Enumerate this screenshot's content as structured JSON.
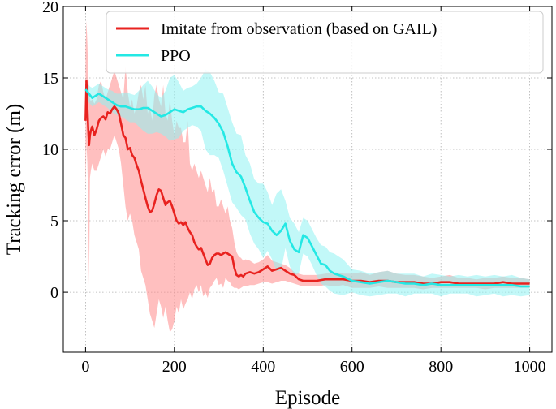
{
  "chart_data": {
    "type": "line",
    "xlabel": "Episode",
    "ylabel": "Tracking error (m)",
    "xlim": [
      -50,
      1050
    ],
    "ylim": [
      -4.2,
      20
    ],
    "xticks": [
      0,
      200,
      400,
      600,
      800,
      1000
    ],
    "yticks": [
      0,
      5,
      10,
      15,
      20
    ],
    "grid": true,
    "legend": "top-right",
    "series": [
      {
        "name": "Imitate from observation (based on GAIL)",
        "color": "#e8221f",
        "band_color": "#ff8a8a",
        "x": [
          0,
          2,
          4,
          6,
          8,
          10,
          12,
          15,
          20,
          25,
          30,
          35,
          40,
          45,
          50,
          55,
          60,
          65,
          70,
          75,
          80,
          85,
          90,
          95,
          100,
          105,
          110,
          115,
          120,
          125,
          130,
          135,
          140,
          145,
          150,
          155,
          160,
          165,
          170,
          175,
          180,
          185,
          190,
          195,
          200,
          205,
          210,
          215,
          220,
          225,
          230,
          235,
          240,
          245,
          250,
          255,
          260,
          265,
          270,
          275,
          280,
          285,
          290,
          295,
          300,
          305,
          310,
          315,
          320,
          325,
          330,
          335,
          340,
          345,
          350,
          355,
          360,
          370,
          380,
          390,
          400,
          410,
          420,
          430,
          440,
          450,
          460,
          470,
          480,
          490,
          500,
          520,
          540,
          560,
          580,
          600,
          620,
          640,
          660,
          680,
          700,
          720,
          740,
          760,
          780,
          800,
          820,
          840,
          860,
          880,
          900,
          920,
          940,
          960,
          980,
          1000
        ],
        "values": [
          12.0,
          14.8,
          13.0,
          11.5,
          10.3,
          11.0,
          11.3,
          11.6,
          11.0,
          11.4,
          12.0,
          12.2,
          12.3,
          12.1,
          12.6,
          12.5,
          12.8,
          13.0,
          12.8,
          12.5,
          11.8,
          11.0,
          10.8,
          10.0,
          10.1,
          9.6,
          9.4,
          8.9,
          8.5,
          7.8,
          7.2,
          6.6,
          6.0,
          5.6,
          5.7,
          6.2,
          6.8,
          7.2,
          7.1,
          6.6,
          6.1,
          6.3,
          6.4,
          6.0,
          5.5,
          5.0,
          4.8,
          4.9,
          4.7,
          4.9,
          4.5,
          4.2,
          4.0,
          3.5,
          3.2,
          3.0,
          3.1,
          2.7,
          2.3,
          1.9,
          2.0,
          2.4,
          2.6,
          2.7,
          2.7,
          2.6,
          2.7,
          2.8,
          2.7,
          2.6,
          2.5,
          1.7,
          1.2,
          1.1,
          1.2,
          1.1,
          1.3,
          1.4,
          1.3,
          1.4,
          1.6,
          1.8,
          1.5,
          1.6,
          1.7,
          1.5,
          1.3,
          1.2,
          0.9,
          0.8,
          0.8,
          0.8,
          0.9,
          0.9,
          0.9,
          0.8,
          0.8,
          0.7,
          0.8,
          0.8,
          0.7,
          0.7,
          0.7,
          0.6,
          0.6,
          0.7,
          0.7,
          0.6,
          0.6,
          0.6,
          0.6,
          0.6,
          0.7,
          0.6,
          0.6,
          0.6
        ],
        "upper": [
          17.0,
          19.0,
          17.5,
          15.5,
          14.0,
          13.5,
          13.4,
          13.5,
          13.2,
          13.5,
          14.5,
          14.8,
          14.0,
          13.5,
          14.0,
          14.5,
          15.0,
          15.5,
          15.0,
          14.5,
          14.0,
          13.5,
          15.8,
          14.0,
          13.0,
          13.5,
          12.5,
          13.0,
          14.0,
          14.5,
          13.5,
          14.5,
          12.5,
          13.0,
          12.0,
          13.8,
          14.5,
          13.5,
          13.0,
          14.5,
          12.5,
          12.0,
          13.5,
          12.0,
          11.0,
          12.0,
          11.5,
          11.5,
          10.5,
          10.5,
          12.0,
          9.0,
          8.5,
          9.0,
          8.5,
          8.0,
          8.5,
          8.0,
          7.5,
          7.0,
          8.0,
          7.0,
          7.2,
          6.0,
          6.0,
          6.5,
          6.0,
          5.5,
          6.0,
          5.0,
          4.5,
          3.5,
          2.8,
          2.5,
          2.4,
          2.2,
          2.3,
          2.2,
          2.0,
          2.1,
          2.3,
          2.6,
          2.2,
          2.1,
          2.0,
          1.9,
          1.7,
          1.4,
          1.3,
          1.2,
          1.2,
          1.2,
          1.3,
          1.4,
          1.3,
          1.3,
          1.4,
          1.2,
          1.4,
          1.5,
          1.3,
          1.2,
          1.2,
          1.1,
          1.0,
          1.1,
          1.2,
          1.0,
          1.0,
          0.9,
          1.0,
          1.0,
          1.1,
          1.0,
          1.0,
          0.9
        ],
        "lower": [
          7.0,
          10.5,
          9.0,
          6.5,
          0.5,
          8.0,
          8.5,
          9.0,
          8.5,
          8.5,
          9.0,
          9.5,
          10.0,
          9.5,
          10.0,
          10.0,
          10.5,
          11.0,
          10.5,
          10.0,
          9.0,
          7.5,
          6.0,
          5.0,
          5.5,
          5.0,
          4.0,
          3.5,
          3.0,
          1.5,
          1.0,
          0.5,
          -0.5,
          -1.5,
          -2.0,
          -2.5,
          -1.5,
          -0.5,
          -1.0,
          -1.8,
          -1.0,
          -2.0,
          -2.8,
          -2.6,
          -2.0,
          -1.0,
          -1.5,
          -0.5,
          -1.2,
          -0.8,
          -0.5,
          0.0,
          -0.5,
          0.2,
          0.5,
          0.0,
          0.5,
          -0.3,
          0.0,
          -0.4,
          0.3,
          0.5,
          0.8,
          1.0,
          0.5,
          0.6,
          0.3,
          1.0,
          0.8,
          0.7,
          0.4,
          0.3,
          0.3,
          0.2,
          0.3,
          0.4,
          0.4,
          0.5,
          0.5,
          0.6,
          0.7,
          0.7,
          0.6,
          0.7,
          0.8,
          0.8,
          0.7,
          0.6,
          0.5,
          0.4,
          0.4,
          0.4,
          0.5,
          0.4,
          0.5,
          0.3,
          0.3,
          0.3,
          0.4,
          0.3,
          0.3,
          0.3,
          0.3,
          0.2,
          0.3,
          0.3,
          0.3,
          0.3,
          0.3,
          0.3,
          0.2,
          0.3,
          0.3,
          0.3,
          0.3,
          0.3
        ]
      },
      {
        "name": "PPO",
        "color": "#24e8e4",
        "band_color": "#8ff3f3",
        "x": [
          0,
          5,
          10,
          15,
          20,
          30,
          40,
          50,
          60,
          70,
          80,
          90,
          100,
          110,
          120,
          130,
          140,
          150,
          160,
          170,
          180,
          190,
          200,
          210,
          220,
          230,
          240,
          250,
          260,
          270,
          280,
          290,
          300,
          310,
          320,
          330,
          340,
          350,
          360,
          370,
          380,
          390,
          400,
          410,
          420,
          430,
          440,
          450,
          460,
          470,
          480,
          490,
          500,
          510,
          520,
          530,
          540,
          550,
          560,
          580,
          600,
          620,
          640,
          660,
          680,
          700,
          720,
          740,
          760,
          780,
          800,
          820,
          840,
          860,
          880,
          900,
          920,
          940,
          960,
          980,
          1000
        ],
        "values": [
          14.2,
          14.0,
          13.8,
          13.6,
          13.7,
          13.9,
          13.7,
          13.5,
          13.3,
          13.1,
          13.0,
          13.0,
          12.9,
          12.8,
          12.8,
          12.9,
          12.9,
          12.7,
          12.5,
          12.3,
          12.4,
          12.6,
          12.8,
          12.7,
          12.6,
          12.8,
          12.9,
          13.0,
          13.0,
          12.7,
          12.5,
          12.2,
          11.8,
          11.2,
          10.2,
          9.0,
          8.4,
          8.1,
          7.3,
          6.4,
          5.6,
          5.2,
          4.9,
          4.8,
          4.3,
          4.0,
          4.3,
          4.8,
          3.6,
          3.0,
          2.8,
          4.0,
          3.8,
          3.2,
          2.6,
          2.0,
          1.9,
          1.5,
          1.3,
          1.1,
          0.8,
          0.7,
          0.6,
          0.7,
          0.8,
          0.7,
          0.6,
          0.6,
          0.5,
          0.6,
          0.5,
          0.5,
          0.5,
          0.5,
          0.5,
          0.5,
          0.5,
          0.5,
          0.5,
          0.4,
          0.4
        ],
        "upper": [
          14.8,
          14.6,
          14.4,
          14.3,
          14.4,
          14.6,
          14.4,
          14.2,
          14.1,
          13.9,
          13.9,
          14.0,
          13.9,
          13.8,
          14.1,
          14.5,
          14.8,
          14.4,
          13.9,
          13.6,
          14.1,
          15.0,
          15.2,
          14.7,
          14.1,
          14.3,
          14.4,
          14.6,
          15.0,
          15.6,
          15.4,
          14.8,
          14.0,
          13.9,
          12.9,
          11.9,
          11.1,
          11.0,
          9.6,
          9.0,
          7.9,
          7.6,
          7.6,
          7.0,
          6.1,
          6.9,
          7.2,
          6.4,
          5.2,
          4.8,
          4.2,
          5.2,
          5.0,
          4.4,
          3.8,
          3.3,
          3.2,
          2.8,
          2.7,
          2.3,
          1.6,
          1.5,
          1.3,
          1.4,
          1.5,
          1.3,
          1.3,
          1.3,
          1.1,
          1.3,
          1.2,
          1.1,
          1.2,
          1.1,
          1.2,
          1.1,
          1.2,
          1.1,
          1.2,
          1.0,
          0.9
        ],
        "lower": [
          13.5,
          13.4,
          13.2,
          13.0,
          13.1,
          13.3,
          13.1,
          12.9,
          12.6,
          12.4,
          12.3,
          12.1,
          11.9,
          11.9,
          11.6,
          11.3,
          11.1,
          11.1,
          11.2,
          11.1,
          10.9,
          10.6,
          10.7,
          10.8,
          11.3,
          11.5,
          11.7,
          11.6,
          11.3,
          10.0,
          9.6,
          9.6,
          9.4,
          8.5,
          7.4,
          6.3,
          5.9,
          5.4,
          5.1,
          4.1,
          3.4,
          3.0,
          2.4,
          2.9,
          2.3,
          1.5,
          1.5,
          3.1,
          1.8,
          1.2,
          1.3,
          2.7,
          2.5,
          1.9,
          1.2,
          0.6,
          0.4,
          0.1,
          -0.1,
          -0.2,
          0.0,
          -0.2,
          -0.3,
          -0.2,
          -0.1,
          -0.1,
          -0.3,
          -0.1,
          -0.1,
          -0.1,
          -0.3,
          -0.1,
          -0.1,
          -0.1,
          -0.3,
          -0.2,
          -0.1,
          -0.3,
          -0.2,
          -0.3,
          -0.2
        ]
      }
    ]
  }
}
